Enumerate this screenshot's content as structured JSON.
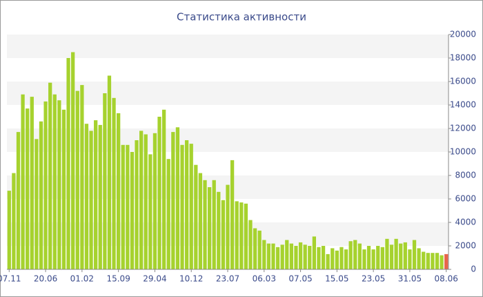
{
  "chart_data": {
    "type": "bar",
    "title": "Статистика активности",
    "categories": [
      "07.11",
      null,
      null,
      null,
      null,
      null,
      null,
      null,
      "20.06",
      null,
      null,
      null,
      null,
      null,
      null,
      null,
      "01.02",
      null,
      null,
      null,
      null,
      null,
      null,
      null,
      "15.09",
      null,
      null,
      null,
      null,
      null,
      null,
      null,
      "29.04",
      null,
      null,
      null,
      null,
      null,
      null,
      null,
      "10.12",
      null,
      null,
      null,
      null,
      null,
      null,
      null,
      "23.07",
      null,
      null,
      null,
      null,
      null,
      null,
      null,
      "06.03",
      null,
      null,
      null,
      null,
      null,
      null,
      null,
      "07.05",
      null,
      null,
      null,
      null,
      null,
      null,
      null,
      "15.05",
      null,
      null,
      null,
      null,
      null,
      null,
      null,
      "23.05",
      null,
      null,
      null,
      null,
      null,
      null,
      null,
      "31.05",
      null,
      null,
      null,
      null,
      null,
      null,
      null,
      "08.06"
    ],
    "values": [
      6700,
      8200,
      11700,
      14900,
      13700,
      14700,
      11100,
      12600,
      14300,
      15900,
      14900,
      14400,
      13600,
      18000,
      18500,
      15200,
      15700,
      12400,
      11800,
      12700,
      12300,
      15000,
      16500,
      14600,
      13300,
      10600,
      10600,
      10000,
      11000,
      11800,
      11500,
      9800,
      11600,
      13000,
      13600,
      9400,
      11700,
      12100,
      10600,
      11000,
      10700,
      8900,
      8200,
      7600,
      7000,
      7600,
      6600,
      5900,
      7200,
      9300,
      5800,
      5700,
      5600,
      4200,
      3500,
      3300,
      2500,
      2200,
      2200,
      1900,
      2100,
      2500,
      2200,
      2000,
      2300,
      2100,
      2000,
      2800,
      1900,
      2000,
      1300,
      1800,
      1600,
      1900,
      1700,
      2400,
      2500,
      2200,
      1700,
      2000,
      1700,
      2000,
      1900,
      2600,
      2100,
      2600,
      2200,
      2300,
      1700,
      2500,
      1800,
      1500,
      1400,
      1400,
      1400,
      1200,
      1300
    ],
    "color": "#a6d22e",
    "last_color": "#e8654a",
    "ylim": [
      0,
      20000
    ],
    "yticks": [
      0,
      2000,
      4000,
      6000,
      8000,
      10000,
      12000,
      14000,
      16000,
      18000,
      20000
    ],
    "grid": true
  }
}
